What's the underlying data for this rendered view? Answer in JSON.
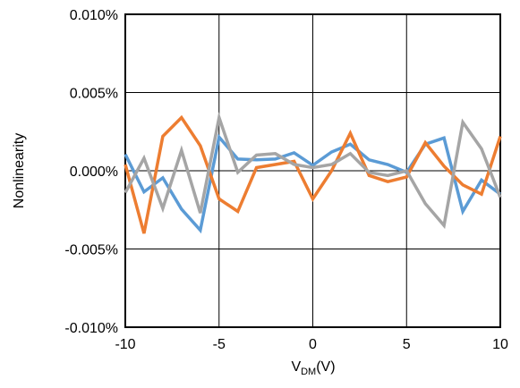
{
  "chart_data": {
    "type": "line",
    "title": "",
    "xlabel": "V",
    "xlabel_sub": "DM",
    "xlabel_suffix": "(V)",
    "ylabel": "Nonlinearity",
    "xlim": [
      -10,
      10
    ],
    "ylim": [
      -0.01,
      0.01
    ],
    "grid": true,
    "legend": "none",
    "x_ticks": [
      -10,
      -5,
      0,
      5,
      10
    ],
    "x_tick_labels": [
      "-10",
      "-5",
      "0",
      "5",
      "10"
    ],
    "y_ticks": [
      0.01,
      0.005,
      0.0,
      -0.005,
      -0.01
    ],
    "y_tick_labels": [
      "0.010%",
      "0.005%",
      "0.000%",
      "-0.005%",
      "-0.010%"
    ],
    "x": [
      -10,
      -9,
      -8,
      -7,
      -6,
      -5,
      -4,
      -3,
      -2,
      -1,
      0,
      1,
      2,
      3,
      4,
      5,
      6,
      7,
      8,
      9,
      10
    ],
    "series": [
      {
        "color": "#5B9BD5",
        "values": [
          0.00105,
          -0.00135,
          -0.00045,
          -0.00245,
          -0.0038,
          0.00215,
          0.00075,
          0.0007,
          0.00075,
          0.00115,
          0.00035,
          0.0012,
          0.0017,
          0.0007,
          0.0004,
          -0.0001,
          0.0017,
          0.0021,
          -0.0026,
          -0.0006,
          -0.0015
        ]
      },
      {
        "color": "#ED7D31",
        "values": [
          0.0004,
          -0.004,
          0.0022,
          0.0034,
          0.0016,
          -0.0018,
          -0.0026,
          0.0002,
          0.0004,
          0.0006,
          -0.0018,
          0.0,
          0.0024,
          -0.0003,
          -0.0007,
          -0.0004,
          0.0018,
          0.0003,
          -0.0009,
          -0.0015,
          0.0022
        ]
      },
      {
        "color": "#A5A5A5",
        "values": [
          -0.0014,
          0.0008,
          -0.0024,
          0.0013,
          -0.0027,
          0.0034,
          -0.0001,
          0.001,
          0.0011,
          0.0004,
          0.0002,
          0.0004,
          0.0011,
          -0.0001,
          -0.0003,
          0.0,
          -0.0021,
          -0.0035,
          0.0031,
          0.0014,
          -0.0017
        ]
      }
    ]
  }
}
